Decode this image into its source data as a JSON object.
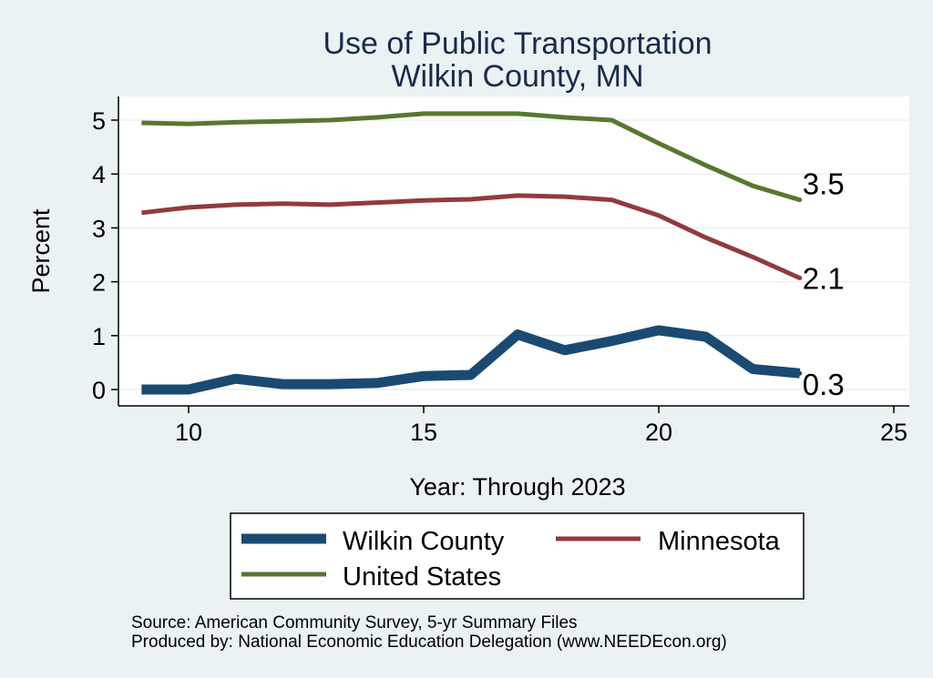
{
  "chart_data": {
    "type": "line",
    "title": "Use of Public Transportation",
    "subtitle": "Wilkin County, MN",
    "xlabel": "Year: Through 2023",
    "ylabel": "Percent",
    "xlim": [
      9,
      25
    ],
    "ylim": [
      0,
      5
    ],
    "xticks": [
      "10",
      "15",
      "20",
      "25"
    ],
    "yticks": [
      "0",
      "1",
      "2",
      "3",
      "4",
      "5"
    ],
    "grid": true,
    "legend_position": "bottom",
    "x": [
      9,
      10,
      11,
      12,
      13,
      14,
      15,
      16,
      17,
      18,
      19,
      20,
      21,
      22,
      23
    ],
    "series": [
      {
        "name": "Wilkin County",
        "color": "#1a4a72",
        "values": [
          0.0,
          0.0,
          0.2,
          0.1,
          0.1,
          0.12,
          0.25,
          0.27,
          1.02,
          0.73,
          0.9,
          1.1,
          0.98,
          0.38,
          0.3
        ],
        "end_label": "0.3"
      },
      {
        "name": "Minnesota",
        "color": "#923a3e",
        "values": [
          3.28,
          3.38,
          3.43,
          3.45,
          3.43,
          3.47,
          3.51,
          3.53,
          3.6,
          3.58,
          3.52,
          3.23,
          2.82,
          2.46,
          2.07
        ],
        "end_label": "2.1"
      },
      {
        "name": "United States",
        "color": "#57782e",
        "values": [
          4.95,
          4.93,
          4.96,
          4.98,
          5.0,
          5.05,
          5.12,
          5.12,
          5.12,
          5.05,
          5.0,
          4.57,
          4.16,
          3.78,
          3.52
        ],
        "end_label": "3.5"
      }
    ],
    "notes": [
      "Source: American Community Survey, 5-yr Summary Files",
      "Produced by: National Economic Education Delegation (www.NEEDEcon.org)"
    ]
  }
}
